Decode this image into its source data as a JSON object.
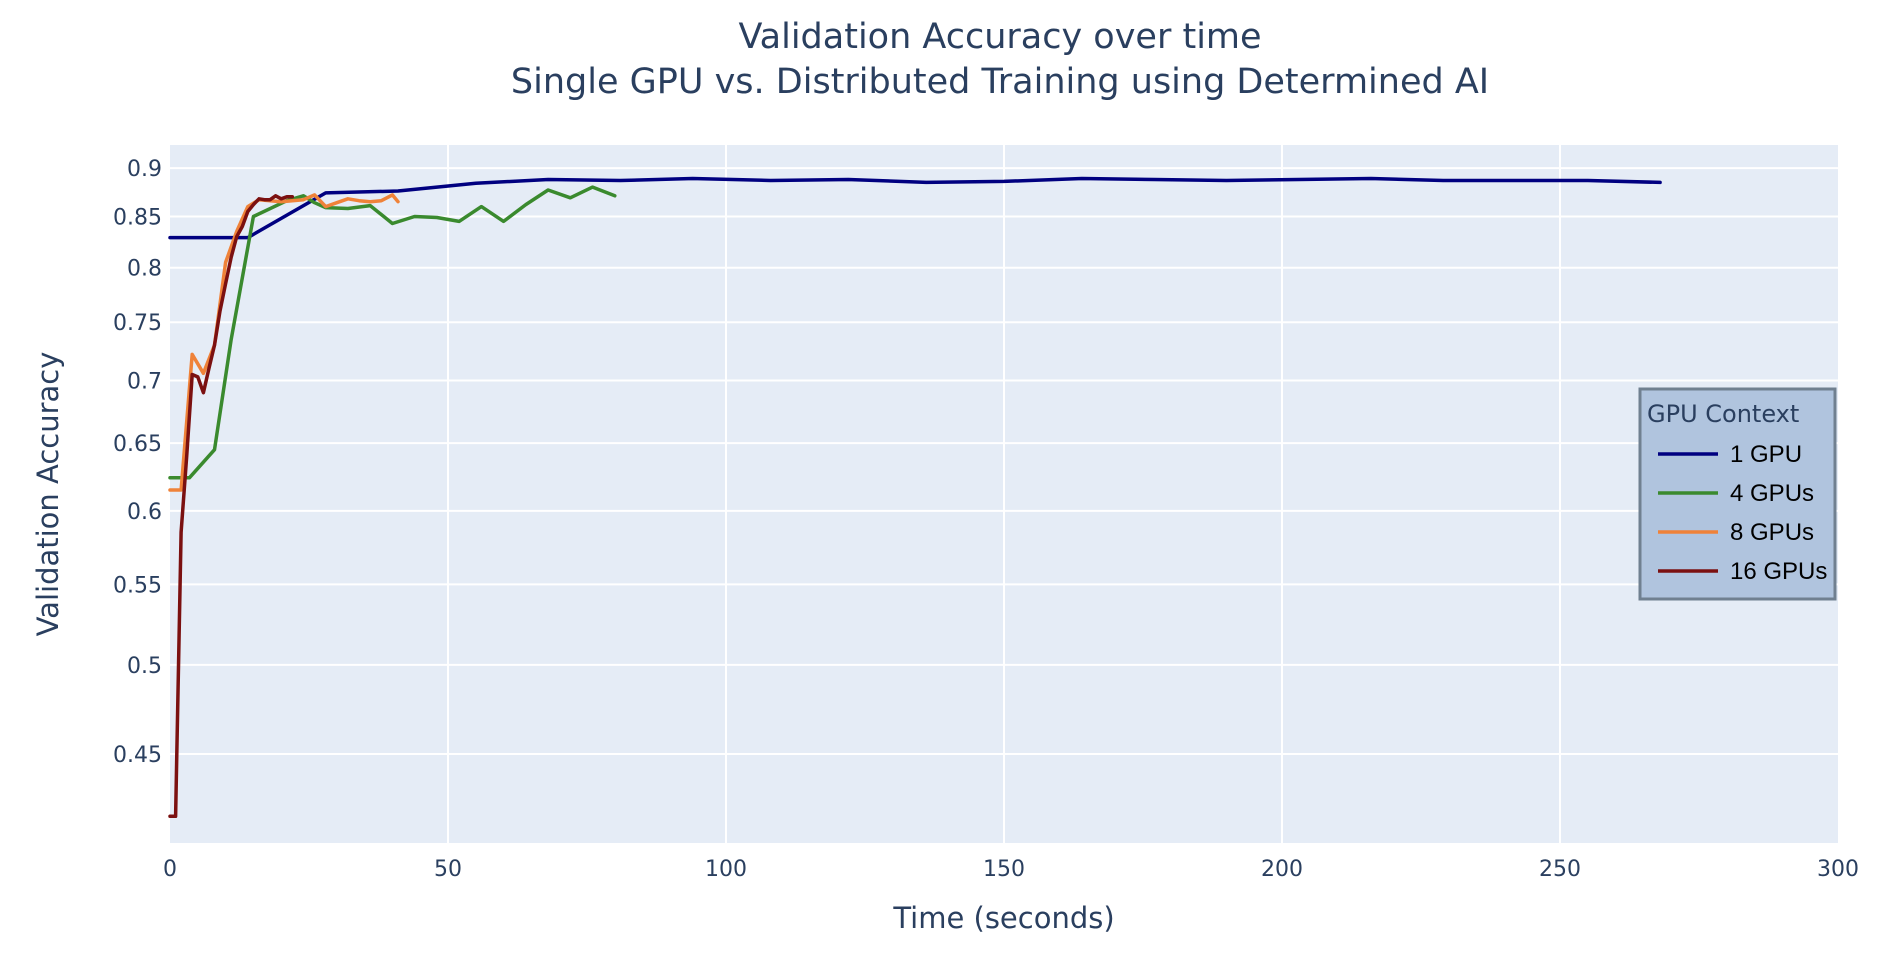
{
  "chart_data": {
    "type": "line",
    "title": "Validation Accuracy over time",
    "subtitle": "Single GPU vs. Distributed Training using Determined AI",
    "xlabel": "Time (seconds)",
    "ylabel": "Validation Accuracy",
    "xlim": [
      0,
      300
    ],
    "ylim": [
      0.405,
      0.925
    ],
    "y_scale": "log",
    "x_ticks": [
      0,
      50,
      100,
      150,
      200,
      250,
      300
    ],
    "y_ticks": [
      0.45,
      0.5,
      0.55,
      0.6,
      0.65,
      0.7,
      0.75,
      0.8,
      0.85,
      0.9
    ],
    "grid": true,
    "plot_background": "#e5ecf6",
    "legend": {
      "title": "GPU Context",
      "position": "right",
      "background": "#b0c4de",
      "border": "#708090"
    },
    "series": [
      {
        "name": "1 GPU",
        "color": "#000080",
        "x": [
          0,
          14,
          28,
          41,
          55,
          68,
          81,
          94,
          108,
          122,
          136,
          150,
          164,
          177,
          190,
          203,
          216,
          229,
          242,
          255,
          268
        ],
        "y": [
          0.829,
          0.829,
          0.874,
          0.876,
          0.884,
          0.888,
          0.887,
          0.889,
          0.887,
          0.888,
          0.885,
          0.886,
          0.889,
          0.888,
          0.887,
          0.888,
          0.889,
          0.887,
          0.887,
          0.887,
          0.885
        ]
      },
      {
        "name": "4 GPUs",
        "color": "#3a8a2e",
        "x": [
          0,
          3.5,
          8,
          11,
          15,
          21,
          24,
          26,
          28,
          32,
          36,
          40,
          44,
          48,
          52,
          56,
          60,
          64,
          68,
          72,
          76,
          80
        ],
        "y": [
          0.624,
          0.624,
          0.645,
          0.735,
          0.85,
          0.866,
          0.871,
          0.864,
          0.859,
          0.858,
          0.861,
          0.843,
          0.85,
          0.849,
          0.845,
          0.86,
          0.845,
          0.862,
          0.877,
          0.869,
          0.88,
          0.871
        ]
      },
      {
        "name": "8 GPUs",
        "color": "#ef8239",
        "x": [
          0,
          2,
          4,
          6,
          8,
          10,
          12,
          14,
          16,
          18,
          20,
          22,
          24,
          26,
          28,
          30,
          32,
          34,
          36,
          38,
          40,
          41
        ],
        "y": [
          0.615,
          0.615,
          0.722,
          0.706,
          0.73,
          0.805,
          0.835,
          0.86,
          0.867,
          0.866,
          0.865,
          0.866,
          0.867,
          0.872,
          0.86,
          0.864,
          0.868,
          0.866,
          0.865,
          0.866,
          0.872,
          0.865
        ]
      },
      {
        "name": "16 GPUs",
        "color": "#7b1010",
        "x": [
          0,
          1,
          2,
          3,
          4,
          5,
          6,
          7,
          8,
          9,
          10,
          11,
          12,
          13,
          14,
          15,
          16,
          17,
          18,
          19,
          20,
          21,
          22
        ],
        "y": [
          0.418,
          0.418,
          0.585,
          0.64,
          0.705,
          0.703,
          0.69,
          0.71,
          0.73,
          0.76,
          0.785,
          0.81,
          0.83,
          0.84,
          0.855,
          0.862,
          0.868,
          0.867,
          0.867,
          0.871,
          0.868,
          0.87,
          0.87
        ]
      }
    ]
  }
}
